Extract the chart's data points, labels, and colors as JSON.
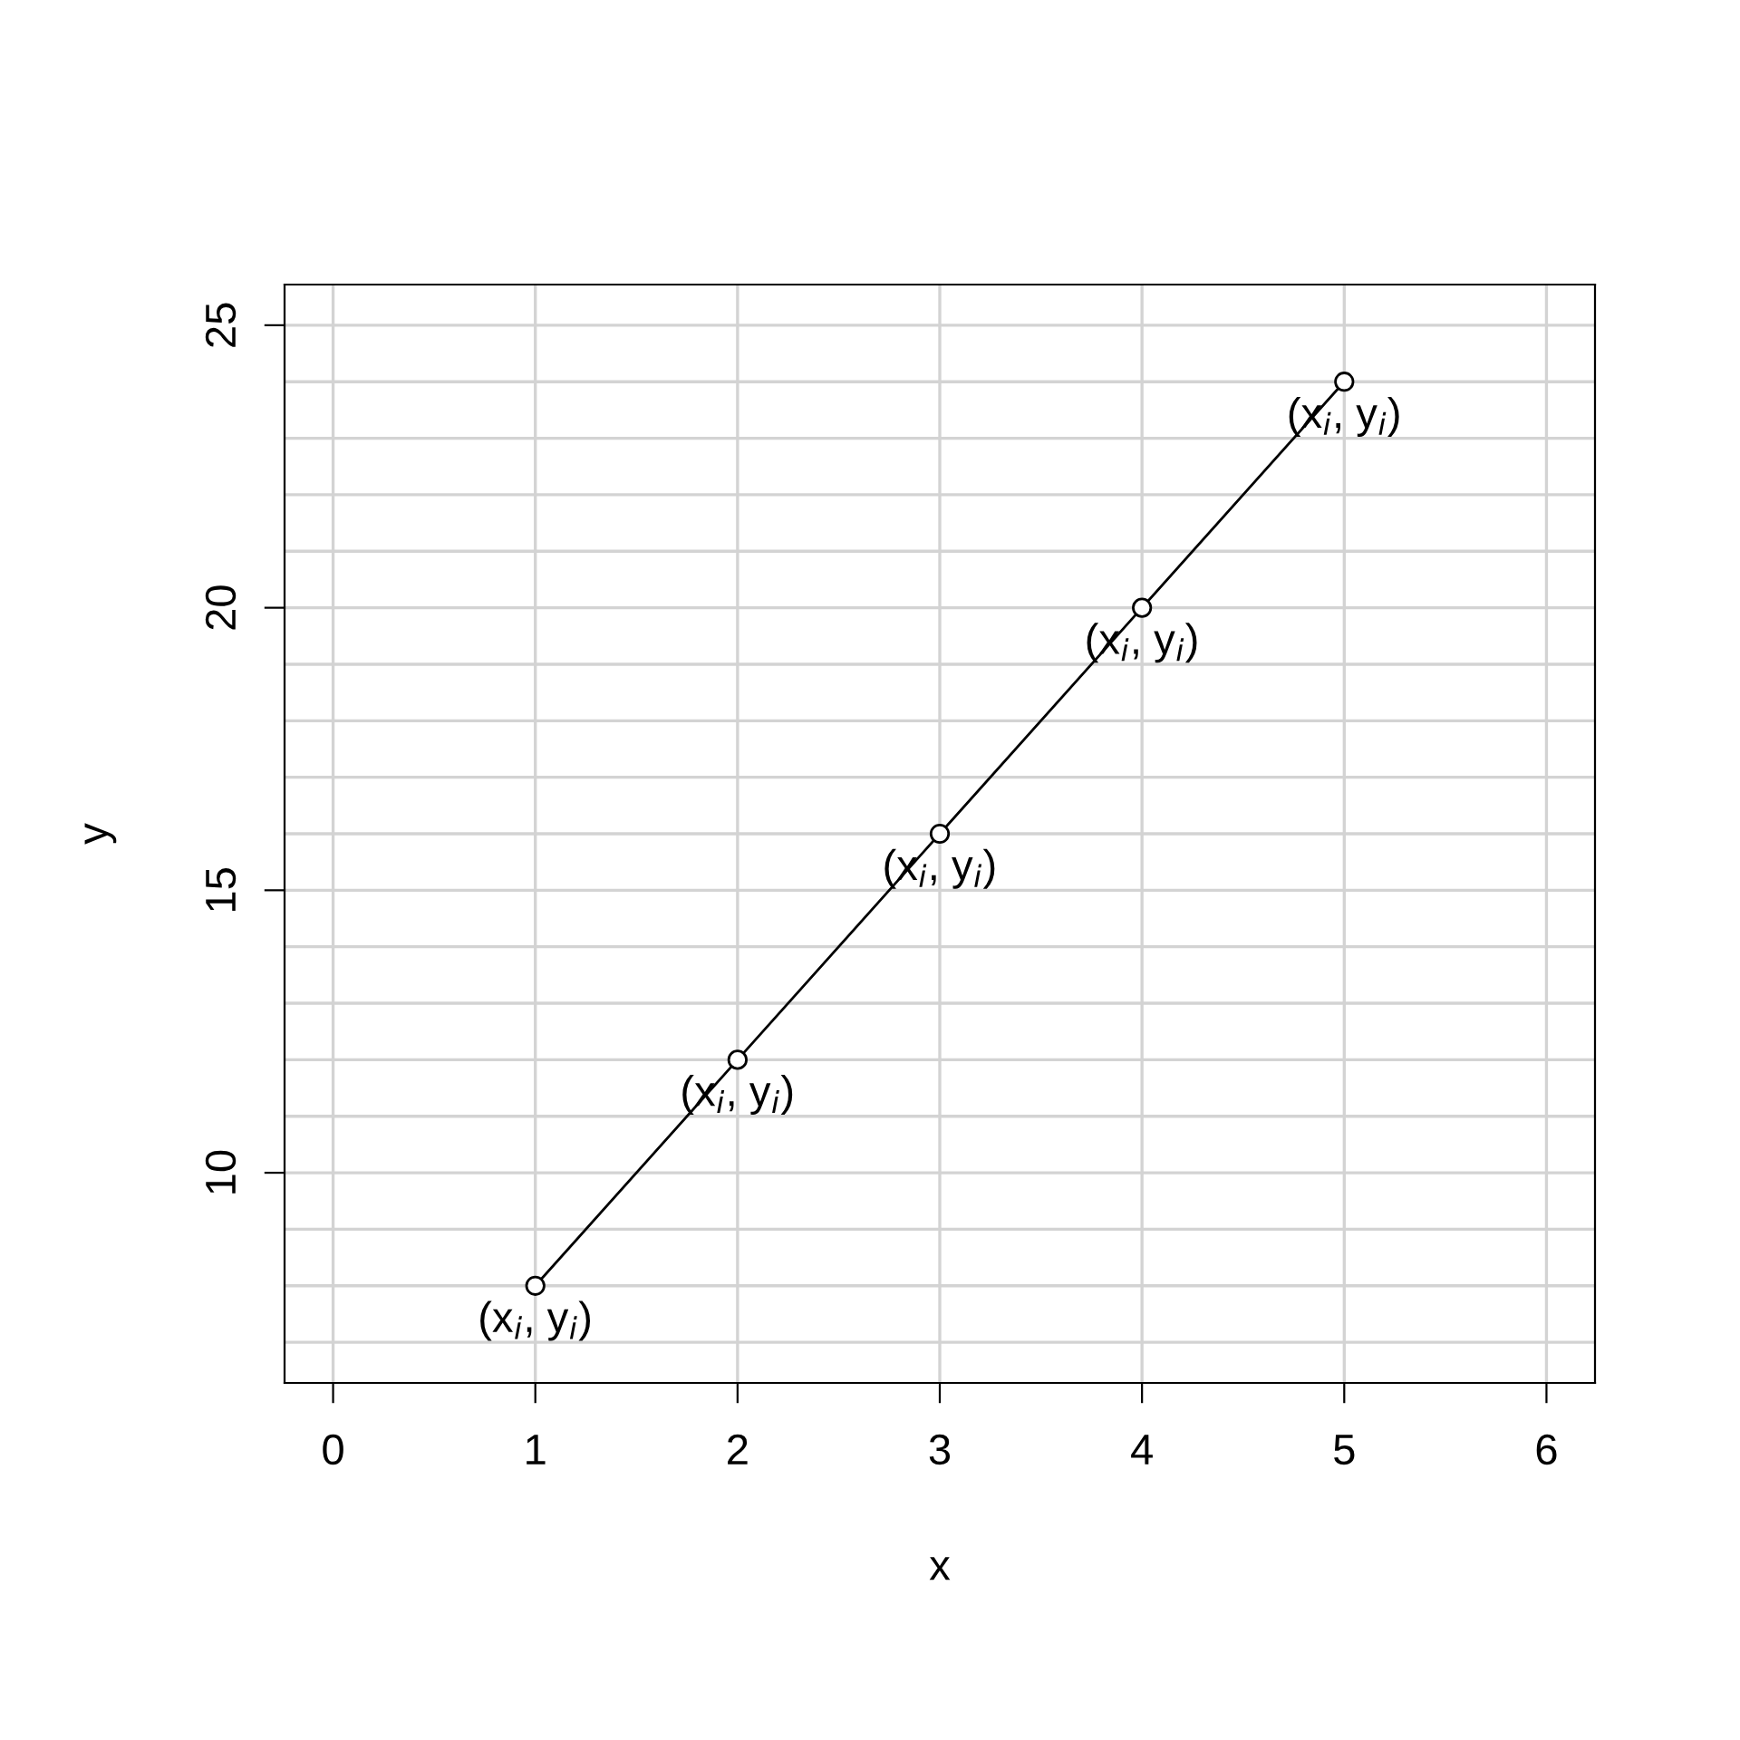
{
  "chart_data": {
    "type": "line",
    "xlabel": "x",
    "ylabel": "y",
    "x": [
      1,
      2,
      3,
      4,
      5
    ],
    "series": [
      {
        "color": "#000000",
        "values": [
          8,
          12,
          16,
          20,
          24
        ]
      }
    ],
    "marker": "circle",
    "xlim": [
      -0.24,
      6.24
    ],
    "ylim": [
      6.28,
      25.72
    ],
    "xticks": [
      0,
      1,
      2,
      3,
      4,
      5,
      6
    ],
    "yticks": [
      {
        "value": 7,
        "label": null
      },
      {
        "value": 8,
        "label": null
      },
      {
        "value": 9,
        "label": null
      },
      10,
      {
        "value": 11,
        "label": null
      },
      {
        "value": 12,
        "label": null
      },
      {
        "value": 13,
        "label": null
      },
      {
        "value": 14,
        "label": null
      },
      15,
      {
        "value": 16,
        "label": null
      },
      {
        "value": 17,
        "label": null
      },
      {
        "value": 18,
        "label": null
      },
      {
        "value": 19,
        "label": null
      },
      20,
      {
        "value": 21,
        "label": null
      },
      {
        "value": 22,
        "label": null
      },
      {
        "value": 23,
        "label": null
      },
      {
        "value": 24,
        "label": null
      },
      25
    ],
    "grid": true,
    "annotations": [
      {
        "text": "(x$_{i}$, y$_{i}$)",
        "x": 1,
        "y": 8
      },
      {
        "text": "(x$_{i}$, y$_{i}$)",
        "x": 2,
        "y": 12
      },
      {
        "text": "(x$_{i}$, y$_{i}$)",
        "x": 3,
        "y": 16
      },
      {
        "text": "(x$_{i}$, y$_{i}$)",
        "x": 4,
        "y": 20
      },
      {
        "text": "(x$_{i}$, y$_{i}$)",
        "x": 5,
        "y": 24
      }
    ]
  }
}
